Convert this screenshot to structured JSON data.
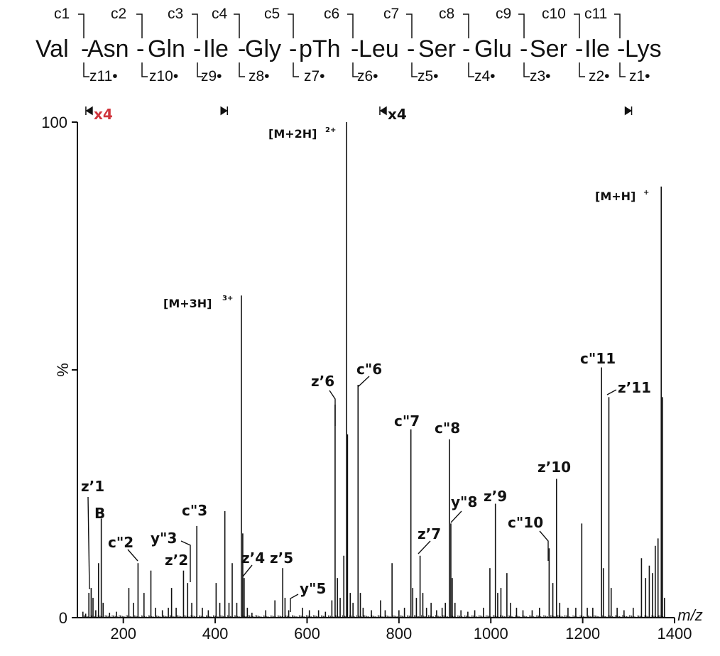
{
  "sequence": {
    "residues": [
      "Val",
      "Asn",
      "Gln",
      "Ile",
      "Gly",
      "pTh",
      "Leu",
      "Ser",
      "Glu",
      "Ser",
      "Ile",
      "Lys"
    ],
    "c_ions": [
      "c1",
      "c2",
      "c3",
      "c4",
      "c5",
      "c6",
      "c7",
      "c8",
      "c9",
      "c10",
      "c11"
    ],
    "z_ions": [
      "z11•",
      "z10•",
      "z9•",
      "z8•",
      "z7•",
      "z6•",
      "z5•",
      "z4•",
      "z3•",
      "z2•",
      "z1•"
    ]
  },
  "magnification": [
    {
      "start_mz": 120,
      "end_mz": 425,
      "factor": "x4",
      "color": "#d0343c"
    },
    {
      "start_mz": 760,
      "end_mz": 1305,
      "factor": "x4",
      "color": "#111111"
    }
  ],
  "chart_data": {
    "type": "bar",
    "title": "",
    "xlabel": "m/z",
    "ylabel": "%",
    "xlim": [
      100,
      1400
    ],
    "ylim": [
      0,
      100
    ],
    "x_ticks": [
      200,
      400,
      600,
      800,
      1000,
      1200,
      1400
    ],
    "y_ticks": [
      {
        "value": 0,
        "label": "0"
      },
      {
        "value": 50,
        "label": "%"
      },
      {
        "value": 100,
        "label": "100"
      }
    ],
    "peaks": [
      {
        "mz": 112,
        "intensity": 1.2
      },
      {
        "mz": 118,
        "intensity": 0.8
      },
      {
        "mz": 125,
        "intensity": 5
      },
      {
        "mz": 130,
        "intensity": 6
      },
      {
        "mz": 134,
        "intensity": 4
      },
      {
        "mz": 140,
        "intensity": 1.5
      },
      {
        "mz": 146,
        "intensity": 11
      },
      {
        "mz": 152,
        "intensity": 20
      },
      {
        "mz": 156,
        "intensity": 3
      },
      {
        "mz": 170,
        "intensity": 1
      },
      {
        "mz": 185,
        "intensity": 1.2
      },
      {
        "mz": 212,
        "intensity": 6
      },
      {
        "mz": 222,
        "intensity": 3
      },
      {
        "mz": 232,
        "intensity": 11
      },
      {
        "mz": 245,
        "intensity": 5
      },
      {
        "mz": 260,
        "intensity": 9.5
      },
      {
        "mz": 270,
        "intensity": 2
      },
      {
        "mz": 285,
        "intensity": 1.5
      },
      {
        "mz": 298,
        "intensity": 2
      },
      {
        "mz": 305,
        "intensity": 6
      },
      {
        "mz": 315,
        "intensity": 2
      },
      {
        "mz": 331,
        "intensity": 9.5
      },
      {
        "mz": 340,
        "intensity": 7
      },
      {
        "mz": 349,
        "intensity": 3
      },
      {
        "mz": 360,
        "intensity": 18.5
      },
      {
        "mz": 372,
        "intensity": 2
      },
      {
        "mz": 385,
        "intensity": 1.5
      },
      {
        "mz": 402,
        "intensity": 7
      },
      {
        "mz": 410,
        "intensity": 3
      },
      {
        "mz": 421,
        "intensity": 21.5
      },
      {
        "mz": 430,
        "intensity": 3
      },
      {
        "mz": 437,
        "intensity": 11
      },
      {
        "mz": 447,
        "intensity": 3
      },
      {
        "mz": 457,
        "intensity": 65
      },
      {
        "mz": 460,
        "intensity": 17
      },
      {
        "mz": 463,
        "intensity": 8
      },
      {
        "mz": 470,
        "intensity": 2
      },
      {
        "mz": 480,
        "intensity": 1
      },
      {
        "mz": 510,
        "intensity": 1.5
      },
      {
        "mz": 530,
        "intensity": 3.5
      },
      {
        "mz": 547,
        "intensity": 10
      },
      {
        "mz": 552,
        "intensity": 4
      },
      {
        "mz": 560,
        "intensity": 1.5
      },
      {
        "mz": 590,
        "intensity": 2
      },
      {
        "mz": 605,
        "intensity": 1.5
      },
      {
        "mz": 625,
        "intensity": 1.5
      },
      {
        "mz": 640,
        "intensity": 1.2
      },
      {
        "mz": 654,
        "intensity": 3.5
      },
      {
        "mz": 661,
        "intensity": 43
      },
      {
        "mz": 666,
        "intensity": 8
      },
      {
        "mz": 672,
        "intensity": 4
      },
      {
        "mz": 680,
        "intensity": 12.5
      },
      {
        "mz": 686,
        "intensity": 100
      },
      {
        "mz": 688,
        "intensity": 37
      },
      {
        "mz": 694,
        "intensity": 5
      },
      {
        "mz": 700,
        "intensity": 3
      },
      {
        "mz": 711,
        "intensity": 47
      },
      {
        "mz": 716,
        "intensity": 5
      },
      {
        "mz": 722,
        "intensity": 2
      },
      {
        "mz": 740,
        "intensity": 1.5
      },
      {
        "mz": 760,
        "intensity": 3.5
      },
      {
        "mz": 770,
        "intensity": 1.5
      },
      {
        "mz": 785,
        "intensity": 11
      },
      {
        "mz": 800,
        "intensity": 1.5
      },
      {
        "mz": 812,
        "intensity": 2
      },
      {
        "mz": 826,
        "intensity": 38
      },
      {
        "mz": 830,
        "intensity": 6
      },
      {
        "mz": 838,
        "intensity": 4
      },
      {
        "mz": 846,
        "intensity": 12.5
      },
      {
        "mz": 852,
        "intensity": 5
      },
      {
        "mz": 860,
        "intensity": 2
      },
      {
        "mz": 870,
        "intensity": 3
      },
      {
        "mz": 882,
        "intensity": 1.5
      },
      {
        "mz": 894,
        "intensity": 2
      },
      {
        "mz": 901,
        "intensity": 3
      },
      {
        "mz": 910,
        "intensity": 36
      },
      {
        "mz": 913,
        "intensity": 19
      },
      {
        "mz": 916,
        "intensity": 8
      },
      {
        "mz": 922,
        "intensity": 3
      },
      {
        "mz": 935,
        "intensity": 1.5
      },
      {
        "mz": 950,
        "intensity": 1.2
      },
      {
        "mz": 965,
        "intensity": 1.5
      },
      {
        "mz": 984,
        "intensity": 2
      },
      {
        "mz": 998,
        "intensity": 10
      },
      {
        "mz": 1010,
        "intensity": 23
      },
      {
        "mz": 1015,
        "intensity": 5
      },
      {
        "mz": 1022,
        "intensity": 6
      },
      {
        "mz": 1035,
        "intensity": 9
      },
      {
        "mz": 1043,
        "intensity": 3
      },
      {
        "mz": 1056,
        "intensity": 2
      },
      {
        "mz": 1070,
        "intensity": 1.5
      },
      {
        "mz": 1090,
        "intensity": 1.5
      },
      {
        "mz": 1106,
        "intensity": 2
      },
      {
        "mz": 1127,
        "intensity": 14
      },
      {
        "mz": 1135,
        "intensity": 7
      },
      {
        "mz": 1143,
        "intensity": 28
      },
      {
        "mz": 1150,
        "intensity": 3
      },
      {
        "mz": 1168,
        "intensity": 2
      },
      {
        "mz": 1185,
        "intensity": 2
      },
      {
        "mz": 1198,
        "intensity": 19
      },
      {
        "mz": 1210,
        "intensity": 2
      },
      {
        "mz": 1222,
        "intensity": 2
      },
      {
        "mz": 1241,
        "intensity": 50.5
      },
      {
        "mz": 1245,
        "intensity": 10
      },
      {
        "mz": 1257,
        "intensity": 44.5
      },
      {
        "mz": 1262,
        "intensity": 6
      },
      {
        "mz": 1275,
        "intensity": 2
      },
      {
        "mz": 1290,
        "intensity": 1.5
      },
      {
        "mz": 1310,
        "intensity": 2
      },
      {
        "mz": 1328,
        "intensity": 12
      },
      {
        "mz": 1337,
        "intensity": 8
      },
      {
        "mz": 1345,
        "intensity": 10.5
      },
      {
        "mz": 1352,
        "intensity": 9
      },
      {
        "mz": 1358,
        "intensity": 14.5
      },
      {
        "mz": 1364,
        "intensity": 16
      },
      {
        "mz": 1371,
        "intensity": 87
      },
      {
        "mz": 1374,
        "intensity": 44.5
      },
      {
        "mz": 1378,
        "intensity": 4
      }
    ],
    "annotations": [
      {
        "label": "[M+3H]",
        "charge": "3+",
        "mz": 457
      },
      {
        "label": "[M+2H]",
        "charge": "2+",
        "mz": 686
      },
      {
        "label": "[M+H]",
        "charge": "+",
        "mz": 1371
      },
      {
        "label": "z’1",
        "mz": 130
      },
      {
        "label": "B",
        "mz": 152
      },
      {
        "label": "c\"2",
        "mz": 232
      },
      {
        "label": "y\"3",
        "mz": 349
      },
      {
        "label": "z’2",
        "mz": 331
      },
      {
        "label": "c\"3",
        "mz": 360
      },
      {
        "label": "z’4",
        "mz": 460
      },
      {
        "label": "z’5",
        "mz": 547
      },
      {
        "label": "y\"5",
        "mz": 565
      },
      {
        "label": "z’6",
        "mz": 661
      },
      {
        "label": "c\"6",
        "mz": 711
      },
      {
        "label": "c\"7",
        "mz": 826
      },
      {
        "label": "z’7",
        "mz": 846
      },
      {
        "label": "c\"8",
        "mz": 910
      },
      {
        "label": "y\"8",
        "mz": 913
      },
      {
        "label": "z’9",
        "mz": 1010
      },
      {
        "label": "c\"10",
        "mz": 1127
      },
      {
        "label": "z’10",
        "mz": 1143
      },
      {
        "label": "c\"11",
        "mz": 1241
      },
      {
        "label": "z’11",
        "mz": 1257
      }
    ]
  }
}
